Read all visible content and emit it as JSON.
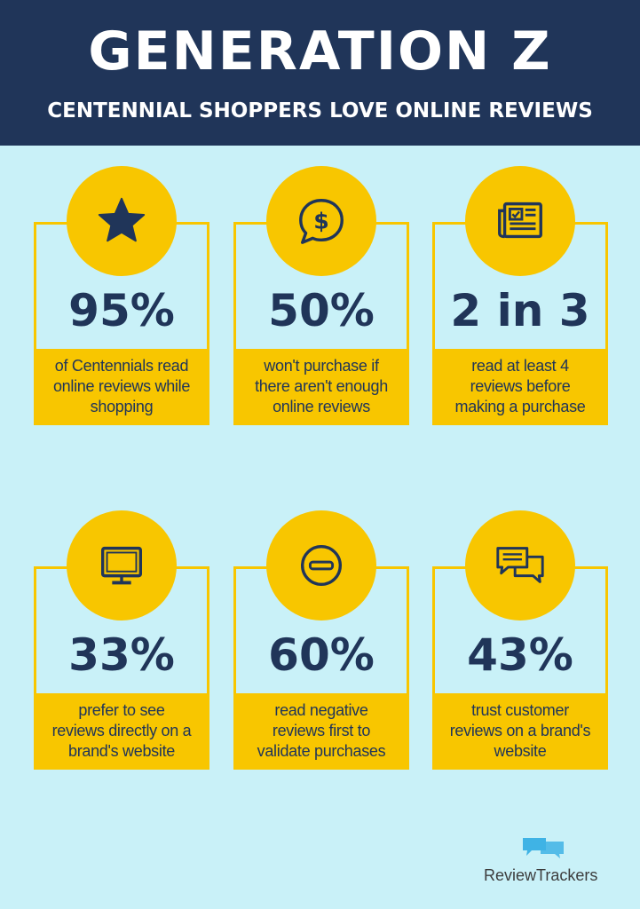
{
  "header": {
    "title": "GENERATION Z",
    "subtitle": "CENTENNIAL SHOPPERS LOVE ONLINE REVIEWS"
  },
  "cards": [
    {
      "icon": "star-icon",
      "stat": "95%",
      "text": "of Centennials read online reviews while shopping"
    },
    {
      "icon": "dollar-speech-bubble-icon",
      "stat": "50%",
      "text": "won't purchase if there aren't enough online reviews"
    },
    {
      "icon": "newspaper-icon",
      "stat": "2 in 3",
      "text": "read at least 4 reviews before making a purchase"
    },
    {
      "icon": "computer-monitor-icon",
      "stat": "33%",
      "text": "prefer to see reviews directly on a brand's website"
    },
    {
      "icon": "minus-circle-icon",
      "stat": "60%",
      "text": "read negative reviews first to validate purchases"
    },
    {
      "icon": "chat-bubbles-icon",
      "stat": "43%",
      "text": "trust customer reviews on a brand's website"
    }
  ],
  "footer": {
    "brand": "ReviewTrackers"
  },
  "colors": {
    "background": "#c9f1f8",
    "header": "#203559",
    "accent": "#f8c600",
    "text": "#203559"
  }
}
